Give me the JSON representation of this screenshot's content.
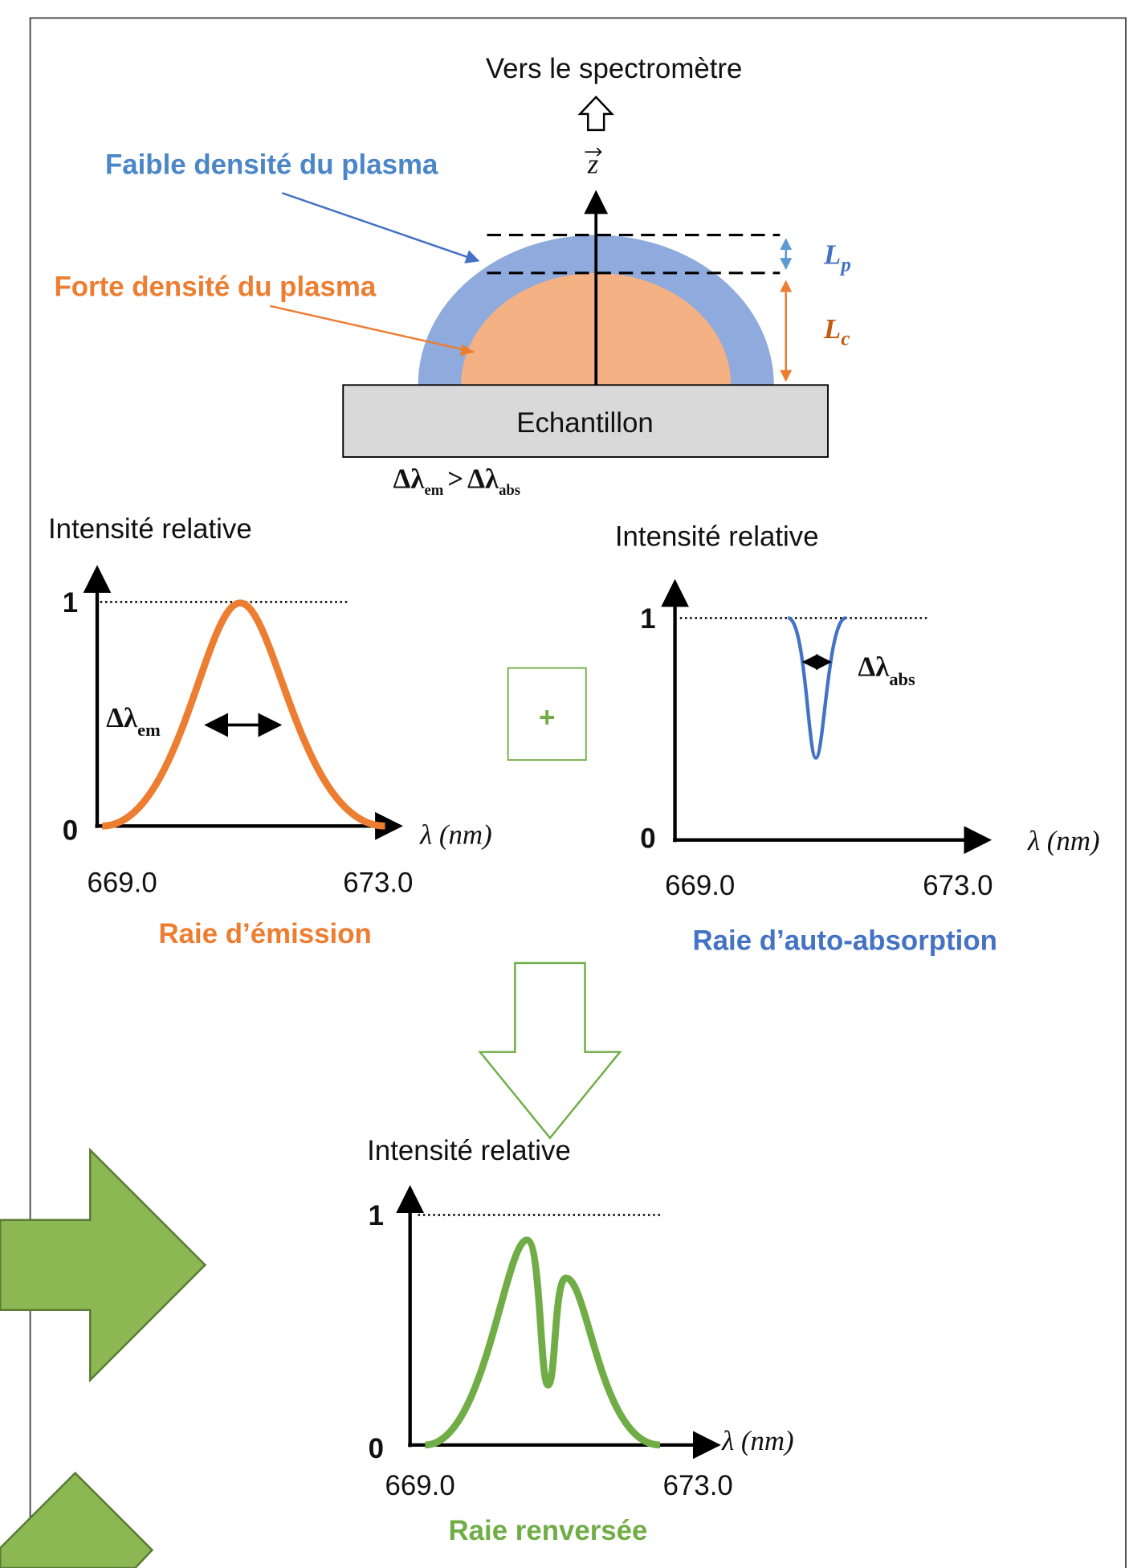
{
  "diagram": {
    "top_label": "Vers le spectromètre",
    "axis_label": "z",
    "low_density_label": "Faible densité du plasma",
    "high_density_label": "Forte densité du plasma",
    "lp": {
      "symbol": "L",
      "sub": "p"
    },
    "lc": {
      "symbol": "L",
      "sub": "c"
    },
    "sample_label": "Echantillon",
    "comparison": {
      "left": "Δλ",
      "left_sub": "em",
      "operator": ">",
      "right": "Δλ",
      "right_sub": "abs"
    }
  },
  "operator": "+",
  "panels": [
    {
      "title": "Raie d’émission",
      "y_label": "Intensité relative",
      "y_ticks": [
        "0",
        "1"
      ],
      "x_label": "λ (nm)",
      "x_ticks": [
        "669.0",
        "673.0"
      ],
      "width_label": {
        "symbol": "Δλ",
        "sub": "em"
      }
    },
    {
      "title": "Raie d’auto-absorption",
      "y_label": "Intensité relative",
      "y_ticks": [
        "0",
        "1"
      ],
      "x_label": "λ (nm)",
      "x_ticks": [
        "669.0",
        "673.0"
      ],
      "width_label": {
        "symbol": "Δλ",
        "sub": "abs"
      }
    },
    {
      "title": "Raie renversée",
      "y_label": "Intensité relative",
      "y_ticks": [
        "0",
        "1"
      ],
      "x_label": "λ (nm)",
      "x_ticks": [
        "669.0",
        "673.0"
      ]
    }
  ]
}
